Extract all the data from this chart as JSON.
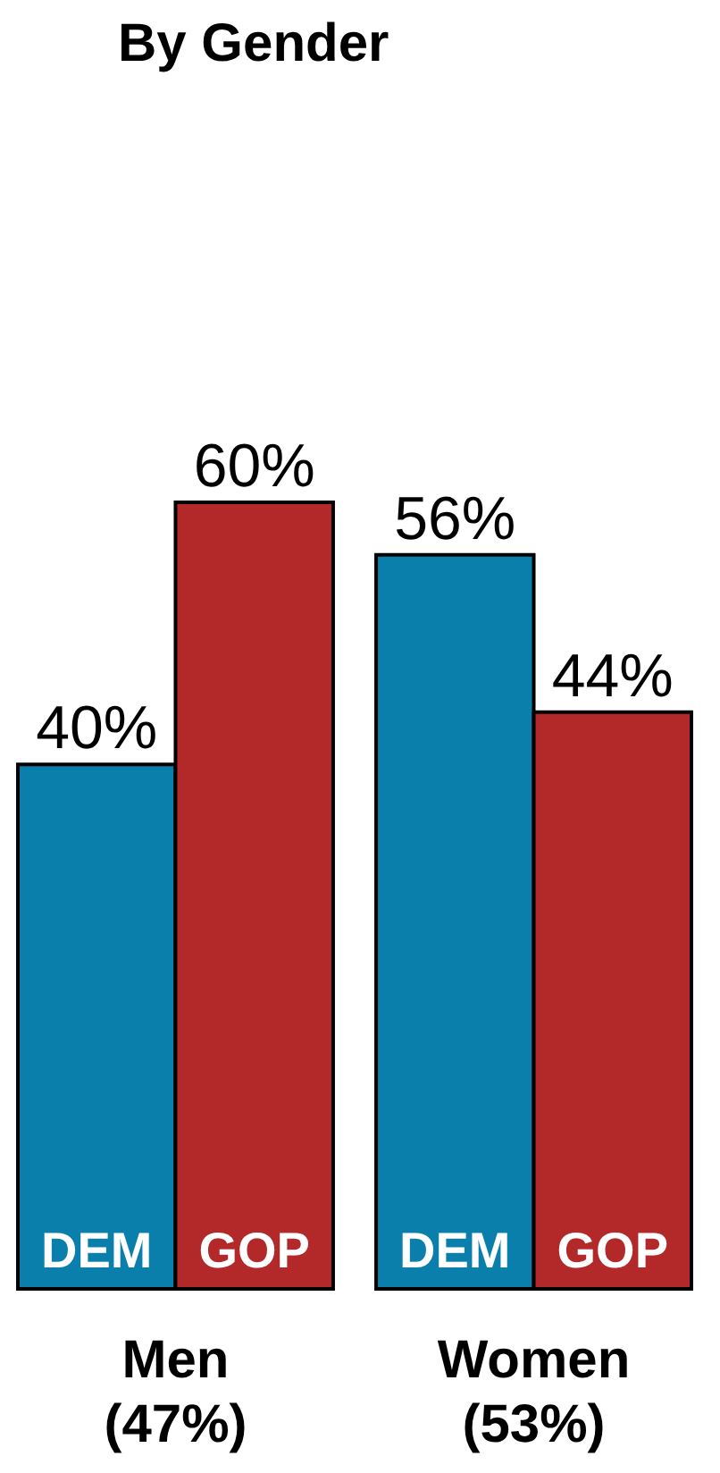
{
  "chart_data": {
    "type": "bar",
    "title": "By Gender",
    "categories": [
      "Men (47%)",
      "Women (53%)"
    ],
    "series": [
      {
        "name": "DEM",
        "color": "#0a7fab",
        "values": [
          40,
          56
        ],
        "value_labels": [
          "40%",
          "56%"
        ]
      },
      {
        "name": "GOP",
        "color": "#b3292a",
        "values": [
          60,
          44
        ],
        "value_labels": [
          "60%",
          "44%"
        ]
      }
    ],
    "legend": false
  }
}
